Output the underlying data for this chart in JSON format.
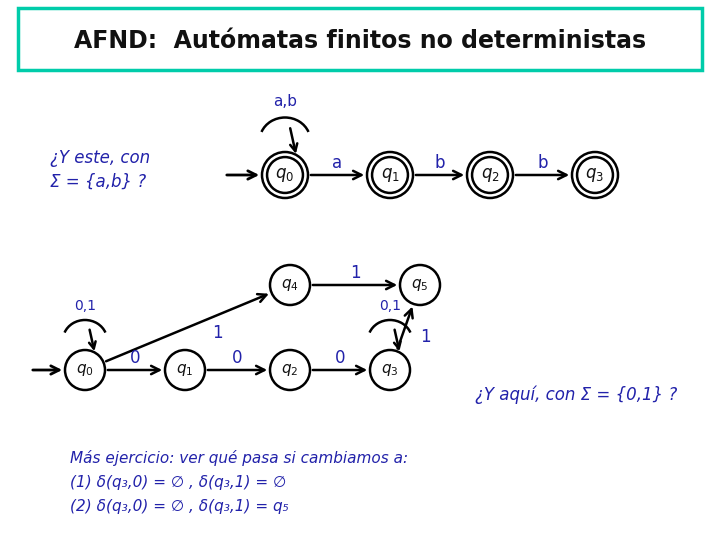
{
  "title": "AFND:  Autómatas finitos no deterministas",
  "title_fontsize": 17,
  "title_bg": "#ffffff",
  "title_border": "#00ccaa",
  "bg_color": "#ffffff",
  "text_color": "#2222aa",
  "node_color": "#ffffff",
  "node_edge_color": "#000000",
  "top_label_line1": "¿Y este, con",
  "top_label_line2": "Σ = {a,b} ?",
  "bottom_right_label": "¿Y aquí, con Σ = {0,1} ?",
  "exercise_line1": "Más ejercicio: ver qué pasa si cambiamos a:",
  "exercise_line2": "(1) δ(q₃,0) = ∅ , δ(q₃,1) = ∅",
  "exercise_line3": "(2) δ(q₃,0) = ∅ , δ(q₃,1) = q₅"
}
